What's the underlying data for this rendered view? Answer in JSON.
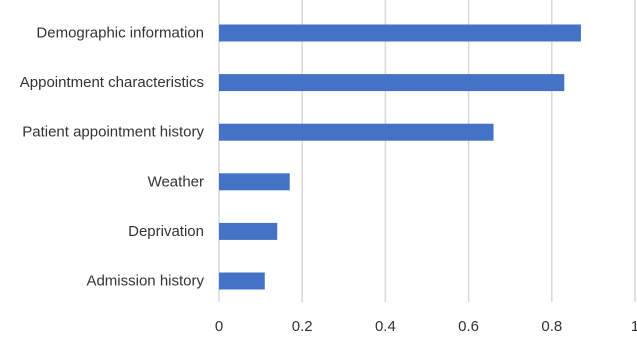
{
  "chart_data": {
    "type": "bar",
    "orientation": "horizontal",
    "categories": [
      "Demographic information",
      "Appointment characteristics",
      "Patient appointment history",
      "Weather",
      "Deprivation",
      "Admission history"
    ],
    "values": [
      0.87,
      0.83,
      0.66,
      0.17,
      0.14,
      0.11
    ],
    "x_ticks": [
      "0",
      "0.2",
      "0.4",
      "0.6",
      "0.8",
      "1"
    ],
    "xlim": [
      0,
      1
    ],
    "grid": true,
    "title": "",
    "xlabel": "",
    "ylabel": "",
    "bar_color": "#4472C4",
    "grid_color": "#D9D9D9"
  }
}
